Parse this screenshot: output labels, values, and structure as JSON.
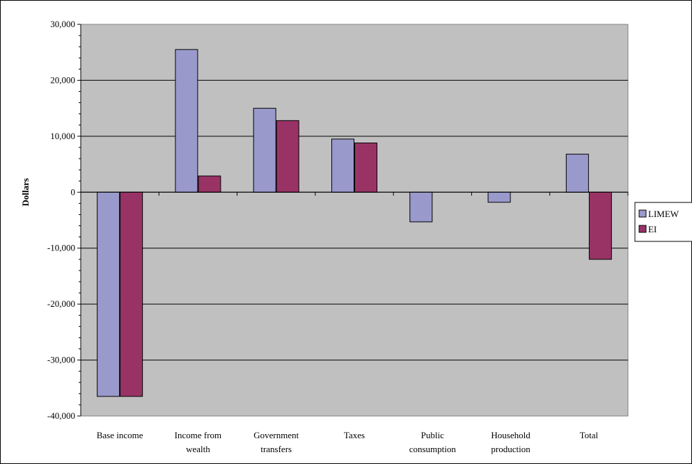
{
  "chart_data": {
    "type": "bar",
    "categories": [
      [
        "Base income"
      ],
      [
        "Income from",
        "wealth"
      ],
      [
        "Government",
        "transfers"
      ],
      [
        "Taxes"
      ],
      [
        "Public",
        "consumption"
      ],
      [
        "Household",
        "production"
      ],
      [
        "Total"
      ]
    ],
    "series": [
      {
        "name": "LIMEW",
        "color": "#9999cc",
        "values": [
          -36500,
          25500,
          15000,
          9500,
          -5300,
          -1800,
          6800
        ]
      },
      {
        "name": "EI",
        "color": "#993366",
        "values": [
          -36500,
          2900,
          12800,
          8800,
          0,
          0,
          -12000
        ]
      }
    ],
    "ylabel": "Dollars",
    "xlabel": "",
    "ylim": [
      -40000,
      30000
    ],
    "yticks": [
      "30,000",
      "20,000",
      "10,000",
      "0",
      "-10,000",
      "-20,000",
      "-30,000",
      "-40,000"
    ],
    "ytick_values": [
      30000,
      20000,
      10000,
      0,
      -10000,
      -20000,
      -30000,
      -40000
    ],
    "plot_background": "#c0c0c0",
    "grid": true,
    "legend_position": "right"
  }
}
